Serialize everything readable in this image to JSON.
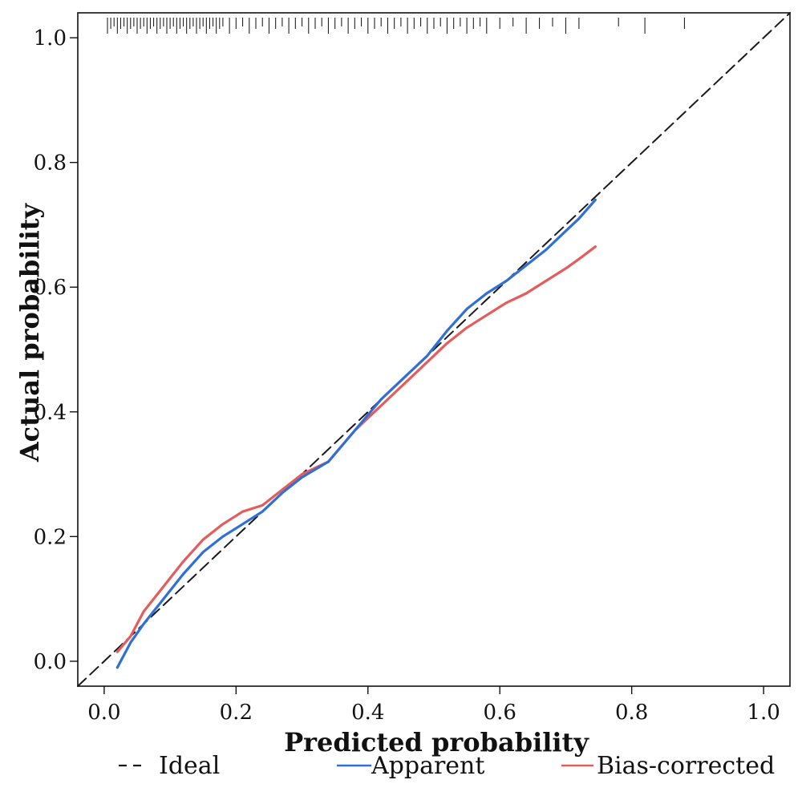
{
  "chart_data": {
    "type": "line",
    "xlabel": "Predicted probability",
    "ylabel": "Actual probability",
    "xlim": [
      -0.04,
      1.04
    ],
    "ylim": [
      -0.04,
      1.04
    ],
    "x_ticks": [
      "0.0",
      "0.2",
      "0.4",
      "0.6",
      "0.8",
      "1.0"
    ],
    "y_ticks": [
      "0.0",
      "0.2",
      "0.4",
      "0.6",
      "0.8",
      "1.0"
    ],
    "x_tick_values": [
      0,
      0.2,
      0.4,
      0.6,
      0.8,
      1.0
    ],
    "y_tick_values": [
      0,
      0.2,
      0.4,
      0.6,
      0.8,
      1.0
    ],
    "grid": false,
    "legend_position": "bottom",
    "series": [
      {
        "name": "Ideal",
        "style": "dashed",
        "color": "#1a1a1a",
        "x": [
          -0.04,
          1.04
        ],
        "y": [
          -0.04,
          1.04
        ]
      },
      {
        "name": "Apparent",
        "style": "solid",
        "color": "#2f6fd6",
        "x": [
          0.02,
          0.04,
          0.06,
          0.09,
          0.12,
          0.15,
          0.18,
          0.21,
          0.24,
          0.27,
          0.3,
          0.34,
          0.38,
          0.42,
          0.46,
          0.49,
          0.52,
          0.55,
          0.58,
          0.61,
          0.64,
          0.67,
          0.7,
          0.72,
          0.745
        ],
        "y": [
          -0.01,
          0.03,
          0.06,
          0.1,
          0.14,
          0.175,
          0.2,
          0.22,
          0.24,
          0.27,
          0.295,
          0.32,
          0.37,
          0.42,
          0.46,
          0.49,
          0.53,
          0.565,
          0.59,
          0.61,
          0.635,
          0.66,
          0.69,
          0.71,
          0.74
        ]
      },
      {
        "name": "Bias-corrected",
        "style": "solid",
        "color": "#e45c5c",
        "x": [
          0.02,
          0.04,
          0.06,
          0.09,
          0.12,
          0.15,
          0.18,
          0.21,
          0.24,
          0.27,
          0.3,
          0.34,
          0.38,
          0.42,
          0.46,
          0.49,
          0.52,
          0.55,
          0.58,
          0.61,
          0.64,
          0.67,
          0.7,
          0.72,
          0.745
        ],
        "y": [
          0.015,
          0.04,
          0.08,
          0.12,
          0.16,
          0.195,
          0.22,
          0.24,
          0.25,
          0.275,
          0.3,
          0.32,
          0.37,
          0.41,
          0.45,
          0.48,
          0.51,
          0.535,
          0.555,
          0.575,
          0.59,
          0.61,
          0.63,
          0.645,
          0.665
        ]
      }
    ],
    "rug_x": [
      0.005,
      0.01,
      0.015,
      0.02,
      0.025,
      0.03,
      0.035,
      0.04,
      0.045,
      0.05,
      0.055,
      0.06,
      0.065,
      0.07,
      0.075,
      0.08,
      0.085,
      0.09,
      0.095,
      0.1,
      0.105,
      0.11,
      0.115,
      0.12,
      0.125,
      0.13,
      0.135,
      0.14,
      0.145,
      0.15,
      0.155,
      0.16,
      0.165,
      0.17,
      0.175,
      0.18,
      0.19,
      0.2,
      0.21,
      0.22,
      0.23,
      0.24,
      0.25,
      0.26,
      0.27,
      0.28,
      0.29,
      0.3,
      0.31,
      0.32,
      0.33,
      0.34,
      0.35,
      0.36,
      0.37,
      0.38,
      0.39,
      0.4,
      0.41,
      0.42,
      0.43,
      0.44,
      0.45,
      0.46,
      0.47,
      0.48,
      0.49,
      0.5,
      0.51,
      0.52,
      0.53,
      0.54,
      0.55,
      0.56,
      0.57,
      0.58,
      0.6,
      0.62,
      0.64,
      0.66,
      0.68,
      0.7,
      0.72,
      0.78,
      0.82,
      0.88
    ]
  }
}
